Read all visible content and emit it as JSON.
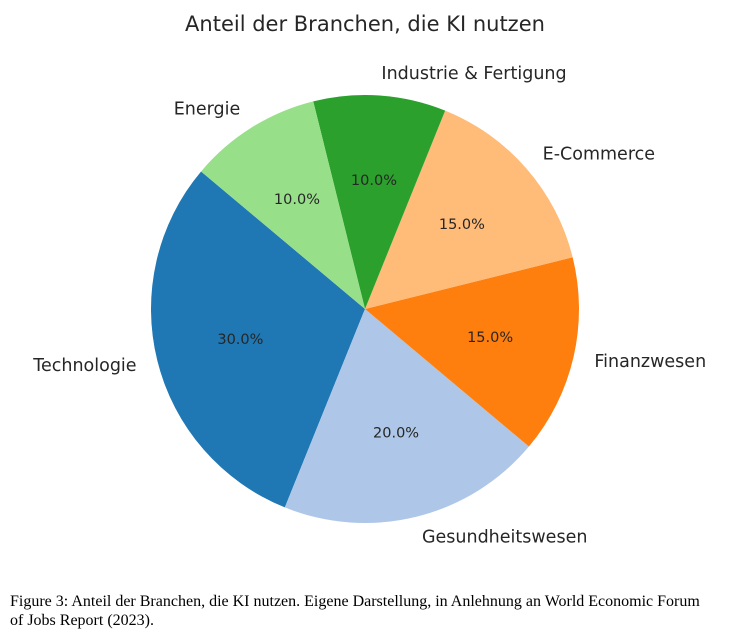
{
  "chart_data": {
    "type": "pie",
    "title": "Anteil der Branchen, die KI nutzen",
    "start_angle_deg": 140,
    "direction": "counterclockwise",
    "value_format": "percent_one_decimal",
    "slices": [
      {
        "label": "Technologie",
        "value": 30.0,
        "pct_text": "30.0%",
        "color": "#1f77b4"
      },
      {
        "label": "Gesundheitswesen",
        "value": 20.0,
        "pct_text": "20.0%",
        "color": "#aec7e8"
      },
      {
        "label": "Finanzwesen",
        "value": 15.0,
        "pct_text": "15.0%",
        "color": "#ff7f0e"
      },
      {
        "label": "E-Commerce",
        "value": 15.0,
        "pct_text": "15.0%",
        "color": "#ffbb78"
      },
      {
        "label": "Industrie & Fertigung",
        "value": 10.0,
        "pct_text": "10.0%",
        "color": "#2ca02c"
      },
      {
        "label": "Energie",
        "value": 10.0,
        "pct_text": "10.0%",
        "color": "#98df8a"
      }
    ]
  },
  "caption": "Figure 3: Anteil der Branchen, die KI nutzen. Eigene Darstellung, in Anlehnung an World Economic Forum of Jobs Report (2023)."
}
